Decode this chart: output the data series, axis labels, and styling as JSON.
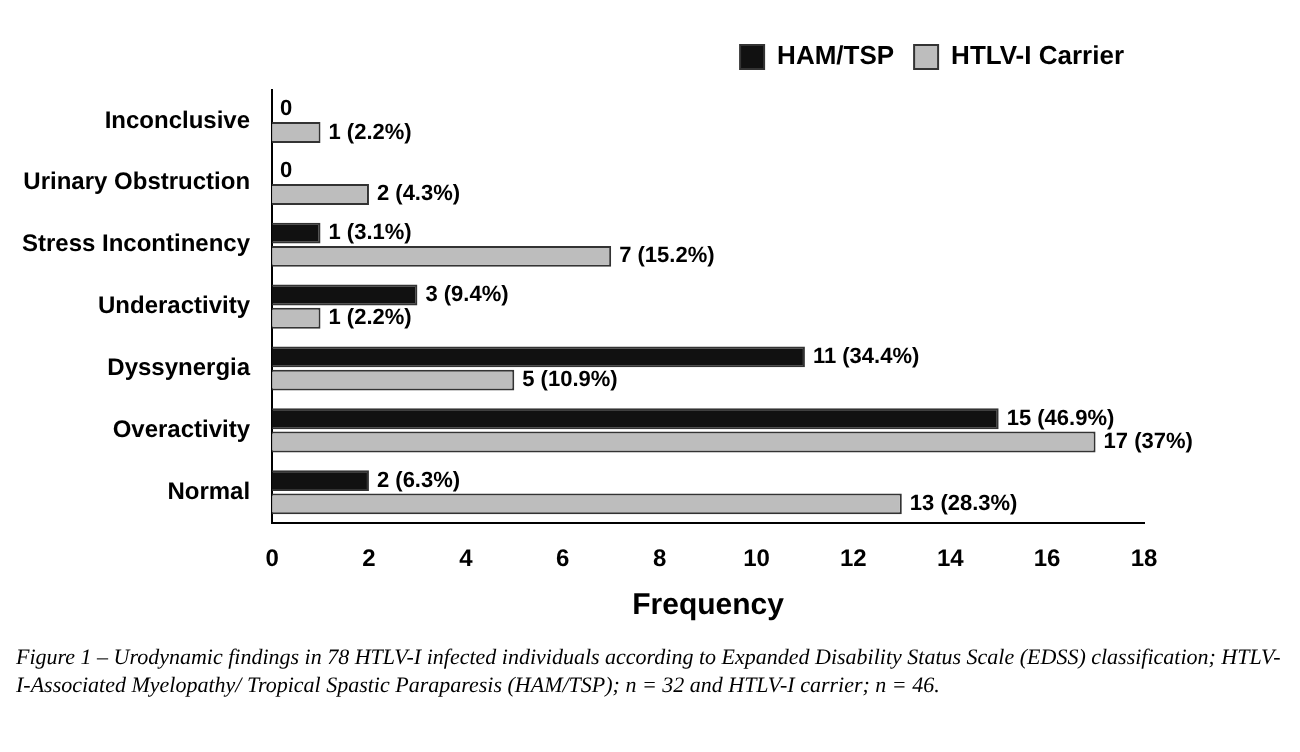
{
  "chart_data": {
    "type": "bar",
    "orientation": "horizontal",
    "categories": [
      "Inconclusive",
      "Urinary Obstruction",
      "Stress Incontinency",
      "Underactivity",
      "Dyssynergia",
      "Overactivity",
      "Normal"
    ],
    "series": [
      {
        "name": "HAM/TSP",
        "color": "#111111",
        "values": [
          0,
          0,
          1,
          3,
          11,
          15,
          2
        ],
        "value_labels": [
          "0",
          "0",
          "1 (3.1%)",
          "3 (9.4%)",
          "11 (34.4%)",
          "15 (46.9%)",
          "2 (6.3%)"
        ]
      },
      {
        "name": "HTLV-I Carrier",
        "color": "#bdbdbd",
        "values": [
          1,
          2,
          7,
          1,
          5,
          17,
          13
        ],
        "value_labels": [
          "1 (2.2%)",
          "2 (4.3%)",
          "7 (15.2%)",
          "1 (2.2%)",
          "5 (10.9%)",
          "17 (37%)",
          "13 (28.3%)"
        ]
      }
    ],
    "xlim": [
      0,
      18
    ],
    "xticks": [
      0,
      2,
      4,
      6,
      8,
      10,
      12,
      14,
      16,
      18
    ],
    "xlabel": "Frequency",
    "grid": false,
    "legend": "top right",
    "annotations": [
      "Figure 1 – Urodynamic findings in 78 HTLV-I infected individuals according to Expanded Disability Status Scale (EDSS) classification; HTLV-I-Associated Myelopathy/ Tropical Spastic Paraparesis (HAM/TSP); n = 32 and HTLV-I carrier; n = 46."
    ]
  }
}
